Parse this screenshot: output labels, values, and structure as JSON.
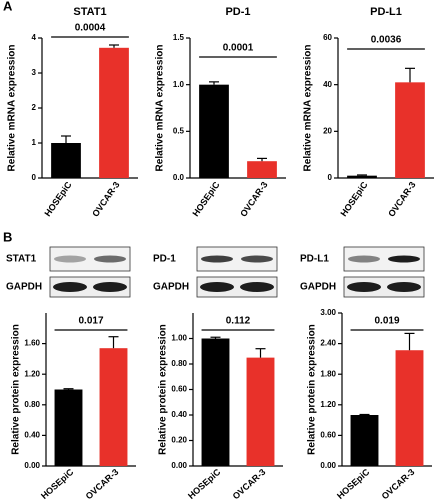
{
  "panel_labels": [
    "A",
    "B"
  ],
  "blots": [
    {
      "protein": "STAT1",
      "control": "GAPDH"
    },
    {
      "protein": "PD-1",
      "control": "GAPDH"
    },
    {
      "protein": "PD-L1",
      "control": "GAPDH"
    }
  ],
  "chart_data": [
    {
      "type": "bar",
      "title": "STAT1",
      "ylabel": "Relative mRNA expression",
      "annotation": "0.0004",
      "categories": [
        "HOSEpiC",
        "OVCAR-3"
      ],
      "values": [
        1.0,
        3.72
      ],
      "errors": [
        0.2,
        0.08
      ],
      "colors": [
        "#000000",
        "#e8312a"
      ],
      "ylim": [
        0,
        4
      ],
      "yticks": [
        0,
        1,
        2,
        3,
        4
      ]
    },
    {
      "type": "bar",
      "title": "PD-1",
      "ylabel": "Relative mRNA expression",
      "annotation": "0.0001",
      "categories": [
        "HOSEpiC",
        "OVCAR-3"
      ],
      "values": [
        1.0,
        0.18
      ],
      "errors": [
        0.03,
        0.03
      ],
      "colors": [
        "#000000",
        "#e8312a"
      ],
      "ylim": [
        0,
        1.5
      ],
      "yticks": [
        {
          "value": 0,
          "label": "0.0"
        },
        {
          "value": 0.5,
          "label": "0.5"
        },
        {
          "value": 1,
          "label": "1.0"
        },
        {
          "value": 1.5,
          "label": "1.5"
        }
      ]
    },
    {
      "type": "bar",
      "title": "PD-L1",
      "ylabel": "Relative mRNA expression",
      "annotation": "0.0036",
      "categories": [
        "HOSEpiC",
        "OVCAR-3"
      ],
      "values": [
        1,
        41
      ],
      "errors": [
        0.3,
        6
      ],
      "colors": [
        "#000000",
        "#e8312a"
      ],
      "ylim": [
        0,
        60
      ],
      "yticks": [
        0,
        20,
        40,
        60
      ]
    },
    {
      "type": "bar",
      "ylabel": "Relative protein expression",
      "annotation": "0.017",
      "categories": [
        "HOSEpiC",
        "OVCAR-3"
      ],
      "values": [
        1.0,
        1.54
      ],
      "errors": [
        0.01,
        0.15
      ],
      "colors": [
        "#000000",
        "#e8312a"
      ],
      "ylim": [
        0,
        2.0
      ],
      "yticks": [
        {
          "value": 0,
          "label": "0.00"
        },
        {
          "value": 0.4,
          "label": "0.40"
        },
        {
          "value": 0.8,
          "label": "0.80"
        },
        {
          "value": 1.2,
          "label": "1.20"
        },
        {
          "value": 1.6,
          "label": "1.60"
        }
      ]
    },
    {
      "type": "bar",
      "ylabel": "Relative protein expression",
      "annotation": "0.112",
      "categories": [
        "HOSEpiC",
        "OVCAR-3"
      ],
      "values": [
        1.0,
        0.85
      ],
      "errors": [
        0.01,
        0.07
      ],
      "colors": [
        "#000000",
        "#e8312a"
      ],
      "ylim": [
        0,
        1.2
      ],
      "yticks": [
        {
          "value": 0,
          "label": "0.00"
        },
        {
          "value": 0.2,
          "label": "0.20"
        },
        {
          "value": 0.4,
          "label": "0.40"
        },
        {
          "value": 0.6,
          "label": "0.60"
        },
        {
          "value": 0.8,
          "label": "0.80"
        },
        {
          "value": 1,
          "label": "1.00"
        }
      ]
    },
    {
      "type": "bar",
      "ylabel": "Relative protein expression",
      "annotation": "0.019",
      "categories": [
        "HOSEpiC",
        "OVCAR-3"
      ],
      "values": [
        1.0,
        2.27
      ],
      "errors": [
        0.01,
        0.33
      ],
      "colors": [
        "#000000",
        "#e8312a"
      ],
      "ylim": [
        0,
        3.0
      ],
      "yticks": [
        {
          "value": 0,
          "label": "0.00"
        },
        {
          "value": 0.6,
          "label": "0.60"
        },
        {
          "value": 1.2,
          "label": "1.20"
        },
        {
          "value": 1.8,
          "label": "1.80"
        },
        {
          "value": 2.4,
          "label": "2.40"
        },
        {
          "value": 3,
          "label": "3.00"
        }
      ]
    }
  ]
}
